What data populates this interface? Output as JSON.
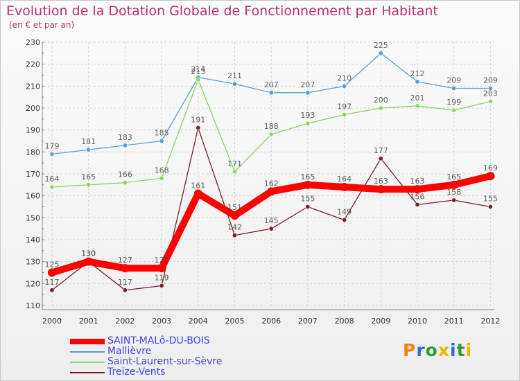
{
  "header": {
    "title": "Evolution de la Dotation Globale de Fonctionnement par Habitant",
    "subtitle": "(en € et par an)"
  },
  "logo": {
    "text": "Proxiti",
    "letter_colors": [
      "#ff7f0e",
      "#2a6ed6",
      "#2ca02c",
      "#e8b600",
      "#2a6ed6",
      "#2ca02c",
      "#e8b600"
    ]
  },
  "chart_data": {
    "type": "line",
    "x": [
      "2000",
      "2001",
      "2002",
      "2003",
      "2004",
      "2005",
      "2006",
      "2007",
      "2008",
      "2009",
      "2010",
      "2011",
      "2012"
    ],
    "ylim": [
      110,
      230
    ],
    "yticks": [
      "110",
      "120",
      "130",
      "140",
      "150",
      "160",
      "170",
      "180",
      "190",
      "200",
      "210",
      "220",
      "230"
    ],
    "grid": true,
    "legend_position": "bottom-left",
    "series": [
      {
        "name": "SAINT-MALô-DU-BOIS",
        "color": "#ff0000",
        "values": [
          125,
          130,
          127,
          127,
          161,
          151,
          162,
          165,
          164,
          163,
          163,
          165,
          169
        ],
        "emphasis": true
      },
      {
        "name": "Mallièvre",
        "color": "#5a9fd4",
        "values": [
          179,
          181,
          183,
          185,
          214,
          211,
          207,
          207,
          210,
          225,
          212,
          209,
          209
        ]
      },
      {
        "name": "Saint-Laurent-sur-Sèvre",
        "color": "#88d66a",
        "values": [
          164,
          165,
          166,
          168,
          213,
          171,
          188,
          193,
          197,
          200,
          201,
          199,
          203
        ]
      },
      {
        "name": "Treize-Vents",
        "color": "#7a2020",
        "values": [
          117,
          130,
          117,
          119,
          191,
          142,
          145,
          155,
          149,
          177,
          156,
          158,
          155
        ]
      }
    ]
  }
}
